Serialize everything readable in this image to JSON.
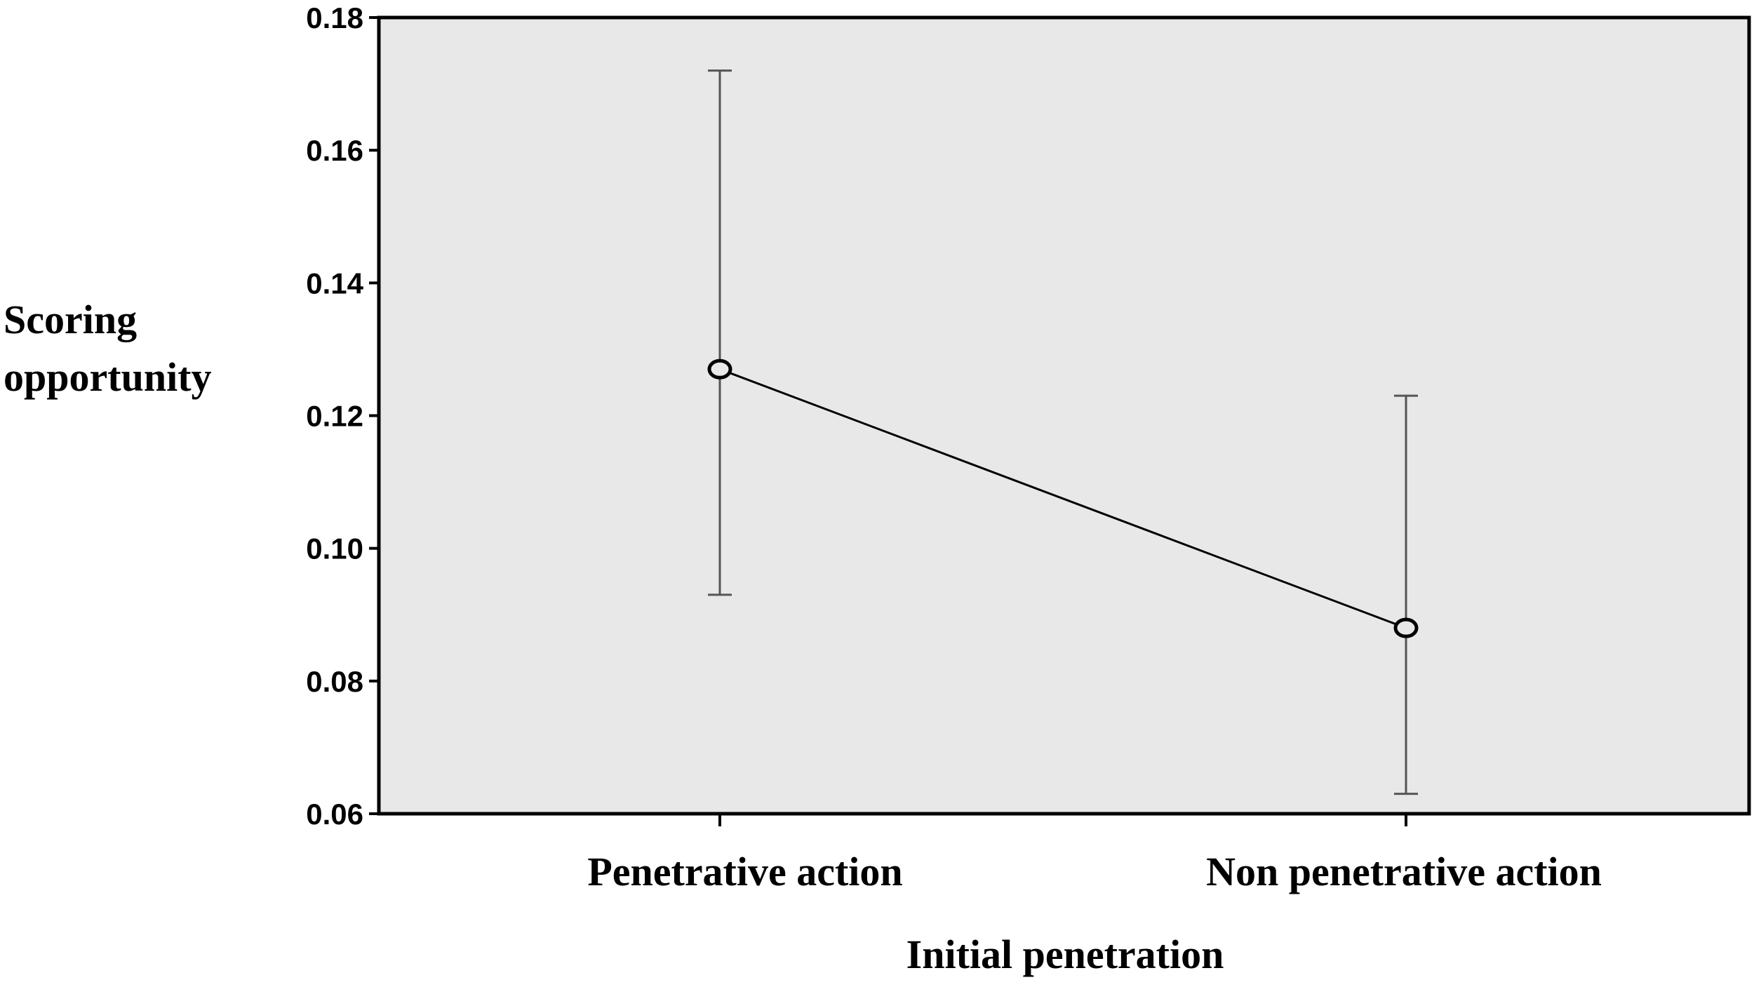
{
  "chart_data": {
    "type": "line",
    "title": "",
    "xlabel": "Initial penetration",
    "ylabel_lines": [
      "Scoring",
      "opportunity"
    ],
    "categories": [
      "Penetrative action",
      "Non penetrative action"
    ],
    "series": [
      {
        "values": [
          0.127,
          0.088
        ],
        "error_upper": [
          0.172,
          0.123
        ],
        "error_lower": [
          0.093,
          0.063
        ]
      }
    ],
    "ylim": [
      0.06,
      0.18
    ],
    "yticks": [
      0.06,
      0.08,
      0.1,
      0.12,
      0.14,
      0.16,
      0.18
    ],
    "ytick_labels": [
      "0.06",
      "0.08",
      "0.10",
      "0.12",
      "0.14",
      "0.16",
      "0.18"
    ],
    "grid": false,
    "plot_background": "#e8e8e8",
    "line_color": "#000000"
  }
}
